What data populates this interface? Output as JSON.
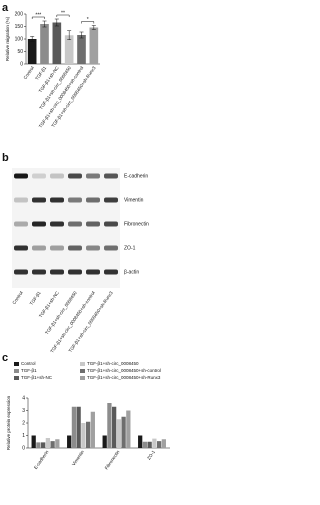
{
  "panels": [
    "a",
    "b",
    "c"
  ],
  "chart_data": [
    {
      "type": "bar",
      "y_label": "Relative migration (%)",
      "categories": [
        "Control",
        "TGF-β1",
        "TGF-β1+sh-NC",
        "TGF-β1+sh-circ_0008450",
        "TGF-β1+sh-circ_0008450+sh-control",
        "TGF-β1+sh-circ_0008450+sh-Runx3"
      ],
      "values": [
        100,
        160,
        166,
        115,
        116,
        146
      ],
      "errors": [
        10,
        12,
        14,
        18,
        12,
        8
      ],
      "colors": [
        "#1a1a1a",
        "#8c8c8c",
        "#5a5a5a",
        "#c8c8c8",
        "#6e6e6e",
        "#a0a0a0"
      ],
      "ylim": [
        0,
        200
      ],
      "yticks": [
        0,
        50,
        100,
        150,
        200
      ],
      "significance": [
        {
          "text": "***",
          "pair": [
            "Control",
            "TGF-β1"
          ]
        },
        {
          "text": "**",
          "pair": [
            "TGF-β1+sh-NC",
            "TGF-β1+sh-circ_0008450"
          ]
        },
        {
          "text": "*",
          "pair": [
            "TGF-β1+sh-circ_0008450+sh-control",
            "TGF-β1+sh-circ_0008450+sh-Runx3"
          ]
        }
      ]
    },
    {
      "type": "grouped-bar",
      "y_label": "Relative protein expression",
      "categories": [
        "E-cadherin",
        "Vimentin",
        "Fibronectin",
        "ZO-1"
      ],
      "series": [
        {
          "name": "Control",
          "color": "#1a1a1a",
          "values": [
            1,
            1,
            1,
            1
          ]
        },
        {
          "name": "TGF-β1",
          "color": "#8c8c8c",
          "values": [
            0.45,
            3.3,
            3.6,
            0.5
          ]
        },
        {
          "name": "TGF-β1+sh-NC",
          "color": "#5a5a5a",
          "values": [
            0.45,
            3.3,
            3.3,
            0.5
          ]
        },
        {
          "name": "TGF-β1+sh-circ_0008450",
          "color": "#c8c8c8",
          "values": [
            0.8,
            2.0,
            2.3,
            0.75
          ]
        },
        {
          "name": "TGF-β1+sh-circ_0008450+sh-control",
          "color": "#6e6e6e",
          "values": [
            0.55,
            2.1,
            2.5,
            0.55
          ]
        },
        {
          "name": "TGF-β1+sh-circ_0008450+sh-Runx3",
          "color": "#a0a0a0",
          "values": [
            0.7,
            2.9,
            3.0,
            0.7
          ]
        }
      ],
      "ylim": [
        0,
        4
      ],
      "yticks": [
        0,
        1,
        2,
        3,
        4
      ]
    }
  ],
  "blot": {
    "proteins": [
      "E-cadherin",
      "Vimentin",
      "Fibronectin",
      "ZO-1",
      "β-actin"
    ],
    "lanes": [
      "Control",
      "TGF-β1",
      "TGF-β1+sh-NC",
      "TGF-β1+sh-circ_0008450",
      "TGF-β1+sh-circ_0008450+sh-control",
      "TGF-β1+sh-circ_0008450+sh-Runx3"
    ]
  }
}
